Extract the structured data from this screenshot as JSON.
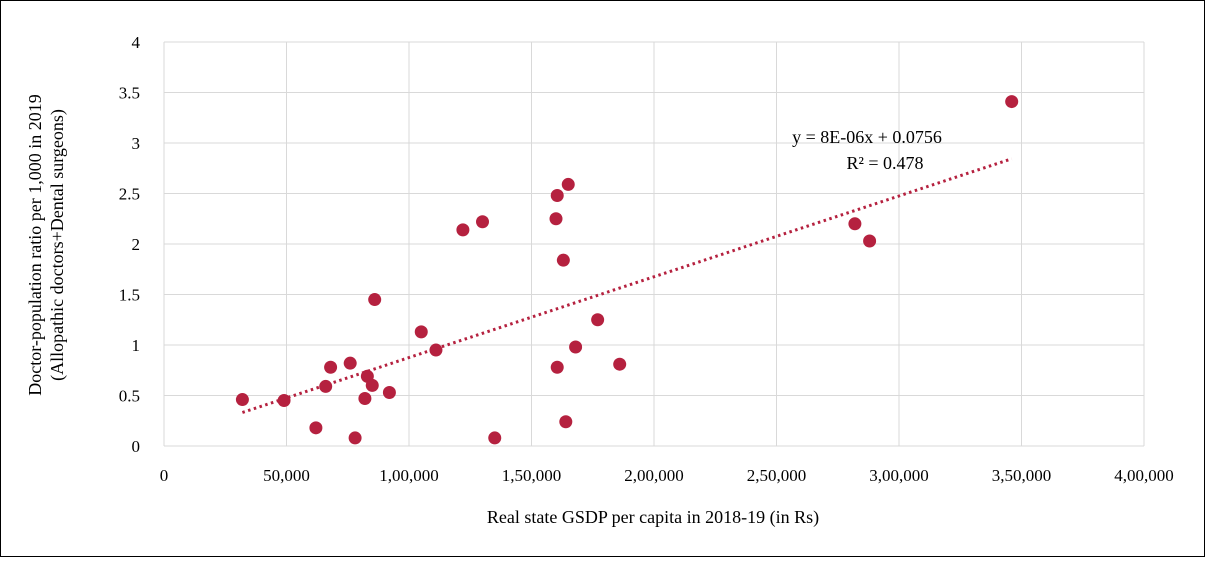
{
  "chart_data": {
    "type": "scatter",
    "title": "",
    "xlabel": "Real state GSDP per capita in 2018-19 (in Rs)",
    "ylabel_lines": [
      "Doctor-population ratio per 1,000 in 2019",
      "(Allopathic doctors+Dental surgeons)"
    ],
    "xlim": [
      0,
      400000
    ],
    "ylim": [
      0,
      4
    ],
    "x_ticks": [
      0,
      50000,
      100000,
      150000,
      200000,
      250000,
      300000,
      350000,
      400000
    ],
    "x_tick_labels": [
      "0",
      "50,000",
      "1,00,000",
      "1,50,000",
      "2,00,000",
      "2,50,000",
      "3,00,000",
      "3,50,000",
      "4,00,000"
    ],
    "y_ticks": [
      0,
      0.5,
      1,
      1.5,
      2,
      2.5,
      3,
      3.5,
      4
    ],
    "y_tick_labels": [
      "0",
      "0.5",
      "1",
      "1.5",
      "2",
      "2.5",
      "3",
      "3.5",
      "4"
    ],
    "grid": true,
    "legend": "none",
    "marker_color": "#b5213f",
    "trendline_color": "#b5213f",
    "points": [
      {
        "x": 32000,
        "y": 0.46
      },
      {
        "x": 49000,
        "y": 0.45
      },
      {
        "x": 62000,
        "y": 0.18
      },
      {
        "x": 66000,
        "y": 0.59
      },
      {
        "x": 68000,
        "y": 0.78
      },
      {
        "x": 76000,
        "y": 0.82
      },
      {
        "x": 78000,
        "y": 0.08
      },
      {
        "x": 82000,
        "y": 0.47
      },
      {
        "x": 83000,
        "y": 0.69
      },
      {
        "x": 85000,
        "y": 0.6
      },
      {
        "x": 86000,
        "y": 1.45
      },
      {
        "x": 92000,
        "y": 0.53
      },
      {
        "x": 105000,
        "y": 1.13
      },
      {
        "x": 111000,
        "y": 0.95
      },
      {
        "x": 122000,
        "y": 2.14
      },
      {
        "x": 130000,
        "y": 2.22
      },
      {
        "x": 135000,
        "y": 0.08
      },
      {
        "x": 160000,
        "y": 2.25
      },
      {
        "x": 160500,
        "y": 2.48
      },
      {
        "x": 160500,
        "y": 0.78
      },
      {
        "x": 163000,
        "y": 1.84
      },
      {
        "x": 164000,
        "y": 0.24
      },
      {
        "x": 165000,
        "y": 2.59
      },
      {
        "x": 168000,
        "y": 0.98
      },
      {
        "x": 177000,
        "y": 1.25
      },
      {
        "x": 186000,
        "y": 0.81
      },
      {
        "x": 282000,
        "y": 2.2
      },
      {
        "x": 288000,
        "y": 2.03
      },
      {
        "x": 346000,
        "y": 3.41
      }
    ],
    "trendline": {
      "slope": 8e-06,
      "intercept": 0.0756,
      "x_range": [
        32000,
        346000
      ],
      "equation": "y = 8E-06x + 0.0756",
      "r_squared": "R² = 0.478"
    }
  }
}
